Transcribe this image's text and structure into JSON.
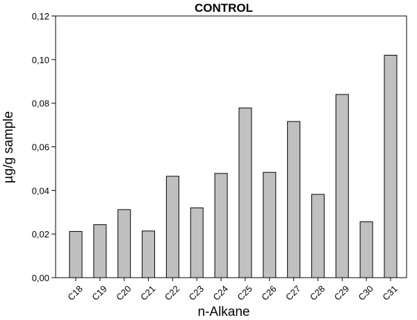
{
  "chart_data": {
    "type": "bar",
    "title": "CONTROL",
    "xlabel": "n-Alkane",
    "ylabel": "µg/g sample",
    "categories": [
      "C18",
      "C19",
      "C20",
      "C21",
      "C22",
      "C23",
      "C24",
      "C25",
      "C26",
      "C27",
      "C28",
      "C29",
      "C30",
      "C31"
    ],
    "values": [
      0.0212,
      0.0243,
      0.0312,
      0.0214,
      0.0465,
      0.032,
      0.0478,
      0.0778,
      0.0483,
      0.0716,
      0.0382,
      0.084,
      0.0256,
      0.102
    ],
    "ylim": [
      0,
      0.12
    ],
    "yticks": [
      0,
      0.02,
      0.04,
      0.06,
      0.08,
      0.1,
      0.12
    ],
    "ytick_labels": [
      "0,00",
      "0,02",
      "0,04",
      "0,06",
      "0,08",
      "0,10",
      "0,12"
    ],
    "grid": false,
    "legend": "none",
    "bar_color": "#c0c0c0",
    "edge_color": "#000000"
  }
}
